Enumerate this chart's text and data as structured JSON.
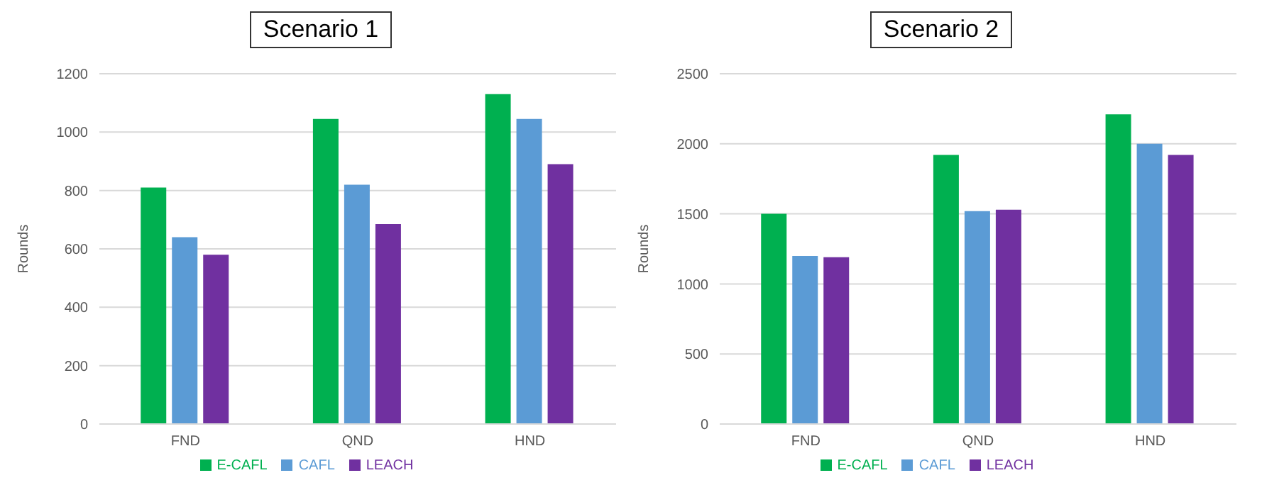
{
  "chart_data": [
    {
      "type": "bar",
      "title": "Scenario 1",
      "ylabel": "Rounds",
      "categories": [
        "FND",
        "QND",
        "HND"
      ],
      "series": [
        {
          "name": "E-CAFL",
          "color": "#00b050",
          "values": [
            810,
            1045,
            1130
          ]
        },
        {
          "name": "CAFL",
          "color": "#5b9bd5",
          "values": [
            640,
            820,
            1045
          ]
        },
        {
          "name": "LEACH",
          "color": "#7030a0",
          "values": [
            580,
            685,
            890
          ]
        }
      ],
      "ylim": [
        0,
        1200
      ],
      "yticks": [
        0,
        200,
        400,
        600,
        800,
        1000,
        1200
      ],
      "grid": "y",
      "legend": "bottom"
    },
    {
      "type": "bar",
      "title": "Scenario 2",
      "ylabel": "Rounds",
      "categories": [
        "FND",
        "QND",
        "HND"
      ],
      "series": [
        {
          "name": "E-CAFL",
          "color": "#00b050",
          "values": [
            1500,
            1920,
            2210
          ]
        },
        {
          "name": "CAFL",
          "color": "#5b9bd5",
          "values": [
            1200,
            1520,
            2000
          ]
        },
        {
          "name": "LEACH",
          "color": "#7030a0",
          "values": [
            1190,
            1530,
            1920
          ]
        }
      ],
      "ylim": [
        0,
        2500
      ],
      "yticks": [
        0,
        500,
        1000,
        1500,
        2000,
        2500
      ],
      "grid": "y",
      "legend": "bottom"
    }
  ]
}
